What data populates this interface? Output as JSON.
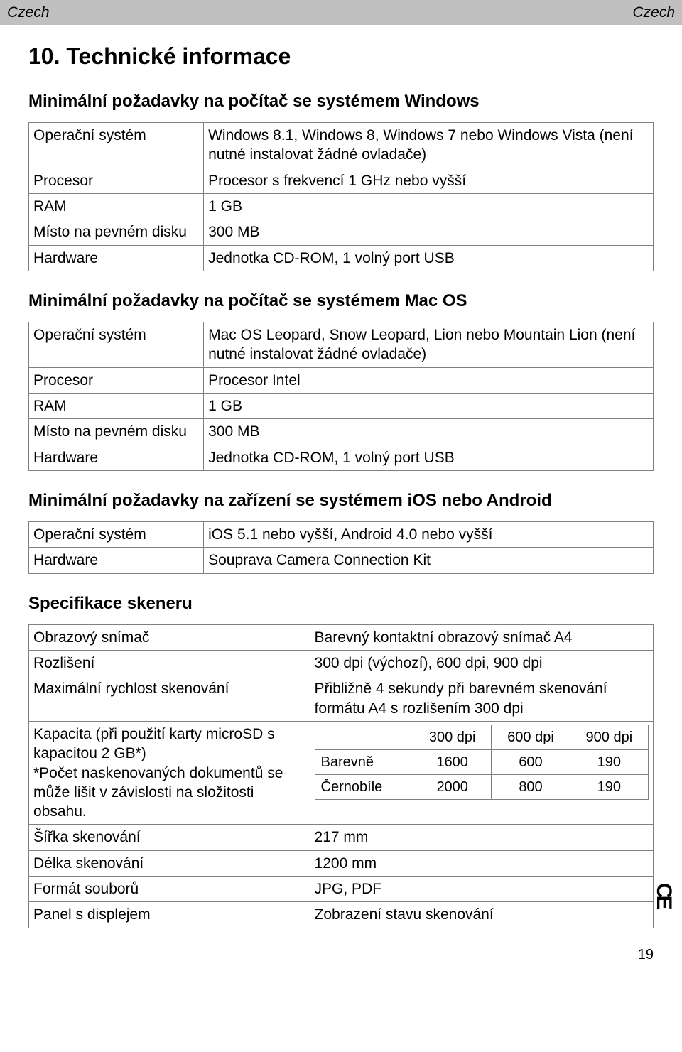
{
  "header": {
    "left": "Czech",
    "right": "Czech"
  },
  "title": "10. Technické informace",
  "section_windows": {
    "heading": "Minimální požadavky na počítač se systémem Windows",
    "rows": {
      "os_label": "Operační systém",
      "os_value": "Windows 8.1, Windows 8, Windows 7 nebo Windows Vista (není nutné instalovat žádné ovladače)",
      "cpu_label": "Procesor",
      "cpu_value": "Procesor s frekvencí 1 GHz nebo vyšší",
      "ram_label": "RAM",
      "ram_value": "1 GB",
      "disk_label": "Místo na pevném disku",
      "disk_value": "300 MB",
      "hw_label": "Hardware",
      "hw_value": "Jednotka CD-ROM, 1 volný port USB"
    }
  },
  "section_mac": {
    "heading": "Minimální požadavky na počítač se systémem Mac OS",
    "rows": {
      "os_label": "Operační systém",
      "os_value": "Mac OS Leopard, Snow Leopard, Lion nebo Mountain Lion (není nutné instalovat žádné ovladače)",
      "cpu_label": "Procesor",
      "cpu_value": "Procesor Intel",
      "ram_label": "RAM",
      "ram_value": "1 GB",
      "disk_label": "Místo na pevném disku",
      "disk_value": "300 MB",
      "hw_label": "Hardware",
      "hw_value": "Jednotka CD-ROM, 1 volný port USB"
    }
  },
  "section_mobile": {
    "heading": "Minimální požadavky na zařízení se systémem iOS nebo Android",
    "rows": {
      "os_label": "Operační systém",
      "os_value": "iOS 5.1 nebo vyšší, Android 4.0 nebo vyšší",
      "hw_label": "Hardware",
      "hw_value": "Souprava Camera Connection Kit"
    }
  },
  "section_scanner": {
    "heading": "Specifikace skeneru",
    "rows": {
      "sensor_label": "Obrazový snímač",
      "sensor_value": "Barevný kontaktní obrazový snímač A4",
      "res_label": "Rozlišení",
      "res_value": "300 dpi (výchozí), 600 dpi, 900 dpi",
      "speed_label": "Maximální rychlost skenování",
      "speed_value": "Přibližně 4 sekundy při barevném skenování formátu A4 s rozlišením 300 dpi",
      "capacity_label": "Kapacita (při použití karty microSD s kapacitou 2 GB*)\n*Počet naskenovaných dokumentů se může lišit v závislosti na složitosti obsahu.",
      "width_label": "Šířka skenování",
      "width_value": "217 mm",
      "length_label": "Délka skenování",
      "length_value": "1200 mm",
      "format_label": "Formát souborů",
      "format_value": "JPG, PDF",
      "panel_label": "Panel s displejem",
      "panel_value": "Zobrazení stavu skenování"
    },
    "capacity_table": {
      "columns": [
        "",
        "300 dpi",
        "600 dpi",
        "900 dpi"
      ],
      "rows": [
        {
          "label": "Barevně",
          "values": [
            "1600",
            "600",
            "190"
          ]
        },
        {
          "label": "Černobíle",
          "values": [
            "2000",
            "800",
            "190"
          ]
        }
      ]
    }
  },
  "page_number": "19",
  "ce_mark": "CE",
  "colors": {
    "header_bg": "#c0c0c0",
    "border": "#808080",
    "text": "#000000",
    "background": "#ffffff"
  }
}
